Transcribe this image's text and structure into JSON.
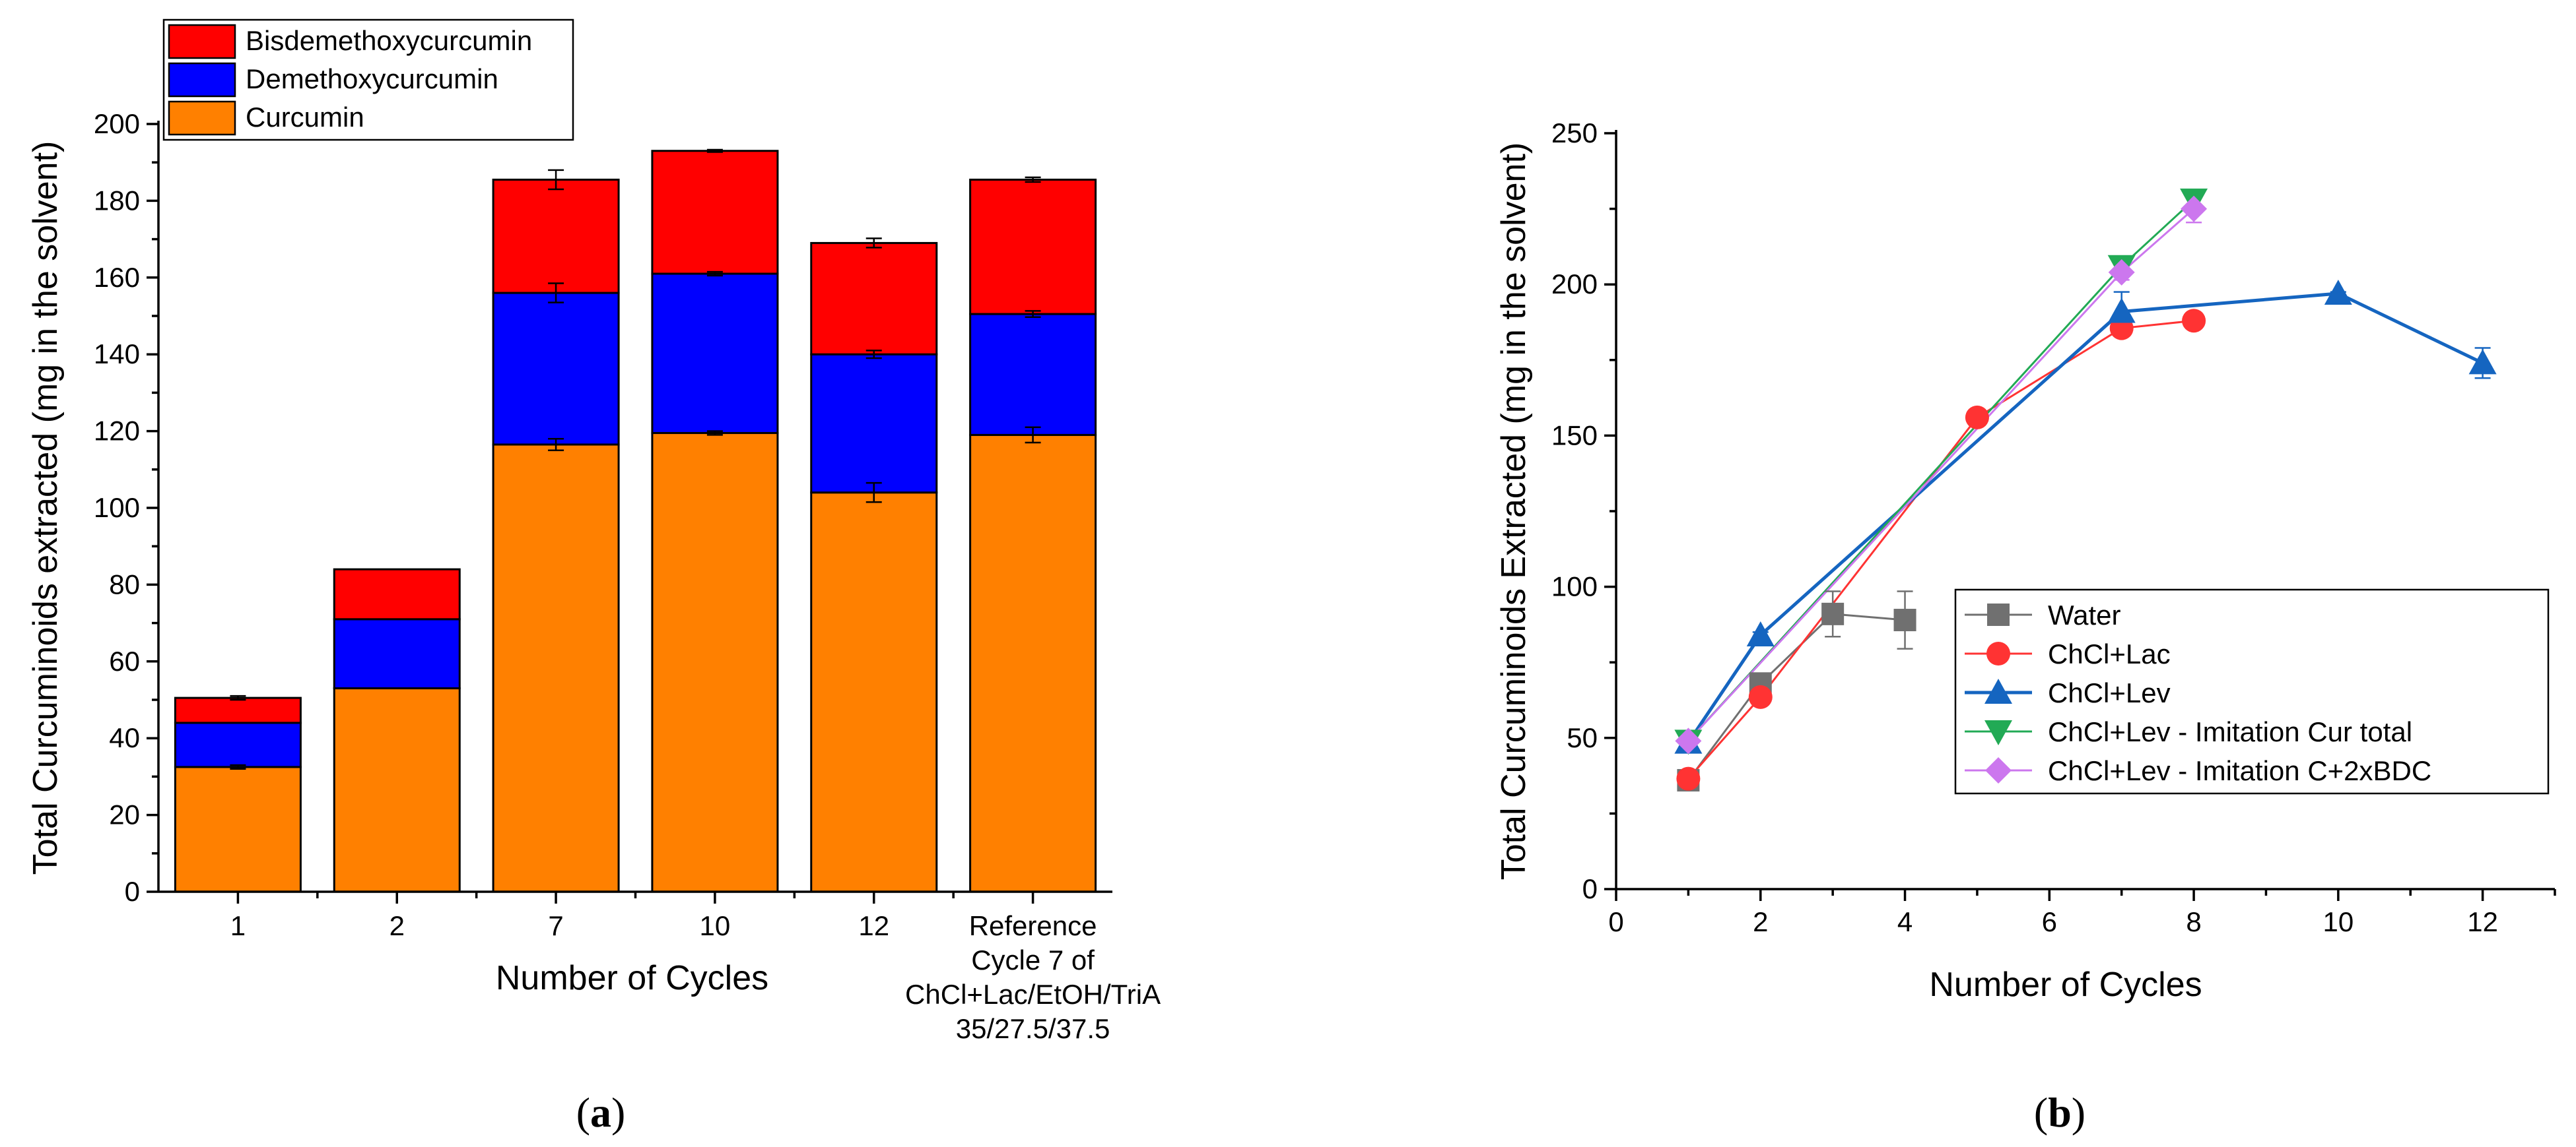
{
  "chart_data": [
    {
      "type": "bar",
      "stacked": true,
      "panel_label": "a",
      "title": "",
      "xlabel": "Number of Cycles",
      "ylabel": "Total Curcuminoids extracted (mg in the solvent)",
      "ylim": [
        0,
        200
      ],
      "yticks": [
        0,
        20,
        40,
        60,
        80,
        100,
        120,
        140,
        160,
        180,
        200
      ],
      "categories": [
        [
          "1"
        ],
        [
          "2"
        ],
        [
          "7"
        ],
        [
          "10"
        ],
        [
          "12"
        ],
        [
          "Reference",
          "Cycle 7 of",
          "ChCl+Lac/EtOH/TriA",
          "35/27.5/37.5"
        ]
      ],
      "legend_position": "top-left",
      "series": [
        {
          "name": "Curcumin",
          "color": "#FF8000",
          "values": [
            32.5,
            53,
            116.5,
            119.5,
            104,
            119
          ],
          "errors": [
            0.5,
            0,
            1.5,
            0.5,
            2.5,
            2
          ]
        },
        {
          "name": "Demethoxycurcumin",
          "color": "#0000FF",
          "values": [
            11.5,
            18,
            39.5,
            41.5,
            36,
            31.5
          ],
          "errors": [
            0,
            0,
            2.5,
            0.5,
            1,
            0.8
          ]
        },
        {
          "name": "Bisdemethoxycurcumin",
          "color": "#FF0000",
          "values": [
            6.5,
            13,
            29.5,
            32,
            29,
            35
          ],
          "errors": [
            0.5,
            0,
            2.5,
            0.3,
            1.2,
            0.6
          ]
        }
      ]
    },
    {
      "type": "line",
      "panel_label": "b",
      "title": "",
      "xlabel": "Number of Cycles",
      "ylabel": "Total Curcuminoids Extracted (mg in the solvent)",
      "xlim": [
        0,
        13
      ],
      "ylim": [
        0,
        250
      ],
      "xticks": [
        0,
        2,
        4,
        6,
        8,
        10,
        12
      ],
      "yticks": [
        0,
        50,
        100,
        150,
        200,
        250
      ],
      "legend_position": "lower-right",
      "series": [
        {
          "name": "Water",
          "color": "#707070",
          "marker": "square",
          "x": [
            1,
            2,
            3,
            4
          ],
          "y": [
            36,
            68,
            91,
            89
          ],
          "errors": [
            1.5,
            3,
            7.5,
            9.5
          ]
        },
        {
          "name": "ChCl+Lac",
          "color": "#FF3333",
          "marker": "circle",
          "x": [
            1,
            2,
            5,
            7,
            8
          ],
          "y": [
            36.5,
            63.5,
            156,
            185.5,
            188
          ],
          "errors": [
            1,
            1.5,
            1,
            2.5,
            1
          ]
        },
        {
          "name": "ChCl+Lev",
          "color": "#1565C0",
          "marker": "triangle-up",
          "x": [
            1,
            2,
            7,
            10,
            12
          ],
          "y": [
            48.5,
            84,
            191,
            197,
            174
          ],
          "errors": [
            2,
            1,
            6.5,
            0.5,
            5
          ]
        },
        {
          "name": "ChCl+Lev - Imitation Cur total",
          "color": "#22AA55",
          "marker": "triangle-down",
          "x": [
            1,
            7,
            8
          ],
          "y": [
            49,
            206,
            228
          ],
          "errors": [
            0,
            0,
            0
          ]
        },
        {
          "name": "ChCl+Lev - Imitation C+2xBDC",
          "color": "#CC77EE",
          "marker": "diamond",
          "x": [
            1,
            7,
            8
          ],
          "y": [
            49,
            204,
            225
          ],
          "errors": [
            2,
            2.5,
            4.5
          ]
        }
      ]
    }
  ]
}
